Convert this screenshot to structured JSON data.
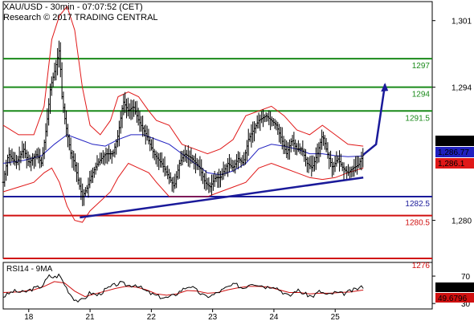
{
  "header": {
    "line1": "XAU/USD - 30min - 07:07:52 (CET)",
    "line2": "Research © 2017 TRADING CENTRAL"
  },
  "colors": {
    "resistance": "#1a8a1a",
    "support": "#1a1a9a",
    "stop": "#d01010",
    "price": "#000000",
    "bollinger": "#e01818",
    "moving_average": "#2020c0",
    "rsi": "#000000",
    "rsi_ma": "#d01010"
  },
  "chart_data": [
    {
      "type": "line",
      "panel": "price",
      "ylim": [
        1276,
        1303
      ],
      "yticks": [
        {
          "value": 1301,
          "label": "1,301"
        },
        {
          "value": 1294,
          "label": "1,294"
        },
        {
          "value": 1280,
          "label": "1,280"
        }
      ],
      "xticks": [
        {
          "value": 0,
          "label": "18"
        },
        {
          "value": 48,
          "label": "21"
        },
        {
          "value": 96,
          "label": "22"
        },
        {
          "value": 144,
          "label": "23"
        },
        {
          "value": 192,
          "label": "24"
        },
        {
          "value": 240,
          "label": "25"
        }
      ],
      "xlim": [
        -20,
        316
      ],
      "levels": [
        {
          "value": 1297.0,
          "label": "1297",
          "role": "resistance",
          "x_start": -20
        },
        {
          "value": 1294.0,
          "label": "1294",
          "role": "resistance",
          "x_start": -20
        },
        {
          "value": 1291.5,
          "label": "1291.5",
          "role": "resistance",
          "x_start": -20
        },
        {
          "value": 1282.5,
          "label": "1282.5",
          "role": "support",
          "x_start": -20
        },
        {
          "value": 1280.5,
          "label": "1280.5",
          "role": "stop",
          "x_start": -20
        },
        {
          "value": 1276.0,
          "label": "1276",
          "role": "stop",
          "x_start": -20
        }
      ],
      "trendline": {
        "x": [
          40,
          262
        ],
        "y": [
          1280.3,
          1284.5
        ]
      },
      "projection": {
        "x": [
          262,
          272,
          279
        ],
        "y": [
          1286.9,
          1288.0,
          1294.3
        ]
      },
      "price_labels": [
        {
          "value": 1286.91,
          "label": "1,286.91",
          "role": "price"
        },
        {
          "value": 1286.77,
          "label": "1,286.77",
          "role": "moving_average"
        },
        {
          "value": 1286.1,
          "label": "1,286.1",
          "role": "bollinger"
        }
      ],
      "price_series": {
        "name": "XAU/USD",
        "keypoints": [
          [
            -20,
            1284.0
          ],
          [
            -16,
            1287.0
          ],
          [
            -10,
            1286.0
          ],
          [
            -4,
            1287.5
          ],
          [
            0,
            1286.0
          ],
          [
            6,
            1287.0
          ],
          [
            10,
            1286.0
          ],
          [
            14,
            1290.0
          ],
          [
            17,
            1294.0
          ],
          [
            20,
            1295.5
          ],
          [
            24,
            1298.0
          ],
          [
            26,
            1293.0
          ],
          [
            29,
            1290.0
          ],
          [
            33,
            1287.0
          ],
          [
            36,
            1286.0
          ],
          [
            39,
            1284.0
          ],
          [
            42,
            1282.5
          ],
          [
            46,
            1283.5
          ],
          [
            50,
            1285.0
          ],
          [
            54,
            1286.0
          ],
          [
            60,
            1287.0
          ],
          [
            66,
            1287.0
          ],
          [
            70,
            1289.0
          ],
          [
            74,
            1292.5
          ],
          [
            78,
            1291.5
          ],
          [
            82,
            1292.0
          ],
          [
            86,
            1290.5
          ],
          [
            92,
            1289.0
          ],
          [
            98,
            1287.0
          ],
          [
            104,
            1286.0
          ],
          [
            110,
            1284.5
          ],
          [
            114,
            1283.5
          ],
          [
            118,
            1286.0
          ],
          [
            122,
            1287.0
          ],
          [
            128,
            1286.5
          ],
          [
            134,
            1285.5
          ],
          [
            138,
            1284.0
          ],
          [
            142,
            1283.5
          ],
          [
            146,
            1284.5
          ],
          [
            150,
            1284.5
          ],
          [
            156,
            1286.0
          ],
          [
            160,
            1285.5
          ],
          [
            164,
            1286.5
          ],
          [
            168,
            1286.0
          ],
          [
            172,
            1288.5
          ],
          [
            176,
            1289.5
          ],
          [
            180,
            1290.5
          ],
          [
            186,
            1291.0
          ],
          [
            190,
            1290.5
          ],
          [
            194,
            1290.0
          ],
          [
            198,
            1288.5
          ],
          [
            202,
            1287.0
          ],
          [
            206,
            1288.5
          ],
          [
            210,
            1287.5
          ],
          [
            214,
            1287.5
          ],
          [
            218,
            1286.0
          ],
          [
            222,
            1285.5
          ],
          [
            226,
            1287.0
          ],
          [
            230,
            1289.0
          ],
          [
            234,
            1287.0
          ],
          [
            238,
            1285.5
          ],
          [
            242,
            1286.5
          ],
          [
            246,
            1285.5
          ],
          [
            250,
            1285.0
          ],
          [
            254,
            1285.5
          ],
          [
            258,
            1285.8
          ],
          [
            262,
            1286.9
          ]
        ]
      },
      "bollinger_upper": {
        "keypoints": [
          [
            -20,
            1290.0
          ],
          [
            -8,
            1289.0
          ],
          [
            4,
            1289.0
          ],
          [
            12,
            1292.0
          ],
          [
            18,
            1299.0
          ],
          [
            24,
            1301.5
          ],
          [
            30,
            1302.5
          ],
          [
            36,
            1300.0
          ],
          [
            42,
            1294.0
          ],
          [
            48,
            1290.0
          ],
          [
            56,
            1289.0
          ],
          [
            64,
            1290.5
          ],
          [
            70,
            1293.0
          ],
          [
            78,
            1293.5
          ],
          [
            86,
            1293.0
          ],
          [
            94,
            1291.5
          ],
          [
            100,
            1290.5
          ],
          [
            110,
            1290.0
          ],
          [
            120,
            1288.0
          ],
          [
            130,
            1287.5
          ],
          [
            140,
            1287.0
          ],
          [
            150,
            1287.5
          ],
          [
            160,
            1288.5
          ],
          [
            170,
            1291.0
          ],
          [
            180,
            1291.5
          ],
          [
            190,
            1292.0
          ],
          [
            200,
            1291.0
          ],
          [
            210,
            1289.5
          ],
          [
            220,
            1289.0
          ],
          [
            230,
            1290.0
          ],
          [
            240,
            1289.0
          ],
          [
            250,
            1288.0
          ],
          [
            262,
            1287.8
          ]
        ]
      },
      "bollinger_lower": {
        "keypoints": [
          [
            -20,
            1283.0
          ],
          [
            -8,
            1283.5
          ],
          [
            4,
            1284.0
          ],
          [
            12,
            1285.0
          ],
          [
            18,
            1285.5
          ],
          [
            24,
            1284.0
          ],
          [
            30,
            1281.5
          ],
          [
            36,
            1280.0
          ],
          [
            42,
            1279.8
          ],
          [
            48,
            1281.0
          ],
          [
            56,
            1282.0
          ],
          [
            64,
            1283.0
          ],
          [
            70,
            1284.5
          ],
          [
            78,
            1286.0
          ],
          [
            86,
            1285.5
          ],
          [
            94,
            1285.0
          ],
          [
            100,
            1284.0
          ],
          [
            110,
            1282.5
          ],
          [
            120,
            1282.5
          ],
          [
            130,
            1282.5
          ],
          [
            140,
            1282.5
          ],
          [
            150,
            1283.0
          ],
          [
            160,
            1283.5
          ],
          [
            170,
            1284.0
          ],
          [
            180,
            1285.5
          ],
          [
            190,
            1286.0
          ],
          [
            200,
            1285.5
          ],
          [
            210,
            1285.0
          ],
          [
            220,
            1284.5
          ],
          [
            230,
            1284.3
          ],
          [
            240,
            1284.5
          ],
          [
            250,
            1285.0
          ],
          [
            262,
            1285.5
          ]
        ]
      },
      "moving_average": {
        "keypoints": [
          [
            -20,
            1286.0
          ],
          [
            -4,
            1286.3
          ],
          [
            10,
            1286.8
          ],
          [
            20,
            1288.0
          ],
          [
            30,
            1289.0
          ],
          [
            40,
            1288.5
          ],
          [
            50,
            1288.0
          ],
          [
            60,
            1287.8
          ],
          [
            70,
            1288.5
          ],
          [
            80,
            1289.0
          ],
          [
            90,
            1289.0
          ],
          [
            100,
            1288.5
          ],
          [
            110,
            1288.0
          ],
          [
            120,
            1287.0
          ],
          [
            130,
            1286.0
          ],
          [
            140,
            1285.0
          ],
          [
            150,
            1284.8
          ],
          [
            160,
            1285.2
          ],
          [
            170,
            1286.0
          ],
          [
            180,
            1287.5
          ],
          [
            190,
            1288.0
          ],
          [
            200,
            1287.8
          ],
          [
            210,
            1287.5
          ],
          [
            220,
            1287.0
          ],
          [
            230,
            1287.0
          ],
          [
            240,
            1286.8
          ],
          [
            250,
            1286.7
          ],
          [
            262,
            1286.77
          ]
        ]
      }
    },
    {
      "type": "line",
      "panel": "rsi",
      "title": "RSI14 - 9MA",
      "ylim": [
        22,
        90
      ],
      "yticks": [
        {
          "value": 70,
          "label": "70"
        },
        {
          "value": 30,
          "label": "30"
        }
      ],
      "xlim": [
        -20,
        316
      ],
      "value_labels": [
        {
          "value": 54.7475,
          "label": "54.7475",
          "role": "rsi"
        },
        {
          "value": 49.6796,
          "label": "49.6796",
          "role": "rsi_ma"
        }
      ],
      "rsi": {
        "name": "RSI14",
        "keypoints": [
          [
            -20,
            40
          ],
          [
            -12,
            48
          ],
          [
            -4,
            46
          ],
          [
            4,
            52
          ],
          [
            10,
            55
          ],
          [
            16,
            70
          ],
          [
            20,
            68
          ],
          [
            24,
            72
          ],
          [
            28,
            58
          ],
          [
            32,
            45
          ],
          [
            36,
            36
          ],
          [
            40,
            33
          ],
          [
            44,
            38
          ],
          [
            48,
            46
          ],
          [
            54,
            42
          ],
          [
            60,
            50
          ],
          [
            66,
            56
          ],
          [
            72,
            60
          ],
          [
            78,
            56
          ],
          [
            84,
            58
          ],
          [
            90,
            50
          ],
          [
            96,
            44
          ],
          [
            102,
            40
          ],
          [
            108,
            38
          ],
          [
            114,
            42
          ],
          [
            120,
            50
          ],
          [
            126,
            56
          ],
          [
            132,
            48
          ],
          [
            138,
            40
          ],
          [
            144,
            42
          ],
          [
            150,
            48
          ],
          [
            156,
            54
          ],
          [
            162,
            58
          ],
          [
            168,
            52
          ],
          [
            174,
            60
          ],
          [
            180,
            58
          ],
          [
            186,
            54
          ],
          [
            192,
            56
          ],
          [
            198,
            48
          ],
          [
            204,
            40
          ],
          [
            210,
            50
          ],
          [
            216,
            44
          ],
          [
            222,
            40
          ],
          [
            228,
            48
          ],
          [
            234,
            42
          ],
          [
            240,
            46
          ],
          [
            246,
            44
          ],
          [
            252,
            48
          ],
          [
            258,
            52
          ],
          [
            262,
            54.7475
          ]
        ]
      },
      "rsi_ma": {
        "name": "9MA",
        "keypoints": [
          [
            -20,
            46
          ],
          [
            -8,
            47
          ],
          [
            4,
            50
          ],
          [
            12,
            55
          ],
          [
            20,
            62
          ],
          [
            28,
            60
          ],
          [
            36,
            48
          ],
          [
            44,
            40
          ],
          [
            52,
            44
          ],
          [
            60,
            48
          ],
          [
            68,
            52
          ],
          [
            76,
            55
          ],
          [
            84,
            54
          ],
          [
            92,
            50
          ],
          [
            100,
            44
          ],
          [
            108,
            42
          ],
          [
            116,
            44
          ],
          [
            124,
            49
          ],
          [
            132,
            48
          ],
          [
            140,
            45
          ],
          [
            148,
            46
          ],
          [
            156,
            50
          ],
          [
            164,
            53
          ],
          [
            172,
            55
          ],
          [
            180,
            55
          ],
          [
            188,
            54
          ],
          [
            196,
            50
          ],
          [
            204,
            46
          ],
          [
            212,
            46
          ],
          [
            220,
            44
          ],
          [
            228,
            45
          ],
          [
            236,
            45
          ],
          [
            244,
            46
          ],
          [
            252,
            47
          ],
          [
            262,
            49.6796
          ]
        ]
      }
    }
  ]
}
